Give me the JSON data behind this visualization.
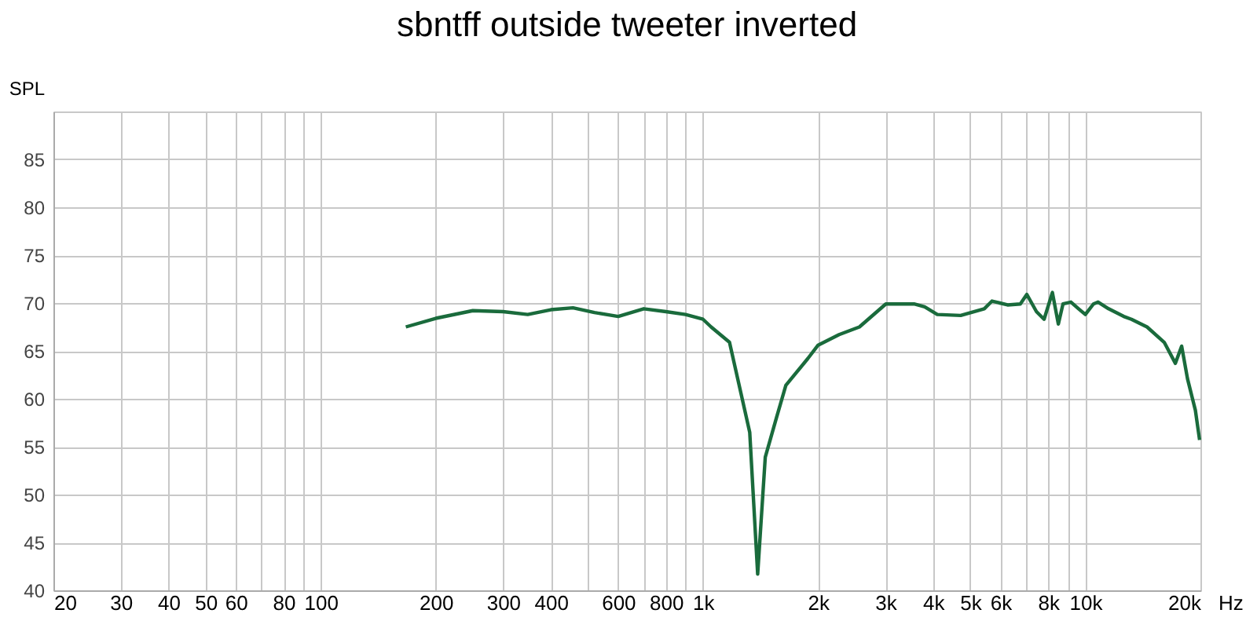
{
  "chart_data": {
    "type": "line",
    "title": "sbntff outside tweeter inverted",
    "ylabel": "SPL",
    "x": [
      167,
      200,
      250,
      300,
      348,
      400,
      457,
      520,
      600,
      700,
      800,
      900,
      1000,
      1050,
      1173,
      1325,
      1390,
      1455,
      1556,
      1647,
      1880,
      2000,
      2270,
      2565,
      3007,
      3565,
      3800,
      4100,
      4720,
      5440,
      5700,
      6260,
      6760,
      7030,
      7450,
      7800,
      8200,
      8500,
      8740,
      9170,
      9600,
      10000,
      10500,
      10800,
      11500,
      12600,
      13200,
      14500,
      16080,
      17200,
      17860,
      18500,
      19400,
      19900
    ],
    "series": [
      {
        "color": "#1a6b3c",
        "values": [
          67.5,
          68.4,
          69.2,
          69.1,
          68.8,
          69.3,
          69.5,
          69.0,
          68.6,
          69.4,
          69.1,
          68.8,
          68.3,
          67.5,
          65.9,
          56.5,
          41.7,
          53.9,
          58.0,
          61.4,
          64.2,
          65.6,
          66.7,
          67.5,
          69.9,
          69.9,
          69.6,
          68.8,
          68.7,
          69.4,
          70.2,
          69.8,
          69.9,
          70.9,
          69.1,
          68.3,
          71.1,
          67.8,
          69.9,
          70.1,
          69.4,
          68.8,
          69.9,
          70.1,
          69.4,
          68.6,
          68.3,
          67.5,
          65.9,
          63.7,
          65.5,
          62.1,
          58.8,
          55.7
        ]
      }
    ],
    "xlim": [
      20,
      20000
    ],
    "ylim": [
      40,
      90
    ],
    "log": "x",
    "grid": true,
    "xticks": [
      20,
      30,
      40,
      50,
      60,
      {
        "value": 70,
        "label": null
      },
      80,
      {
        "value": 90,
        "label": null
      },
      100,
      200,
      300,
      400,
      {
        "value": 500,
        "label": null
      },
      600,
      {
        "value": 700,
        "label": null
      },
      800,
      {
        "value": 900,
        "label": null
      },
      {
        "value": 1000,
        "label": "1k"
      },
      {
        "value": 2000,
        "label": "2k"
      },
      {
        "value": 3000,
        "label": "3k"
      },
      {
        "value": 4000,
        "label": "4k"
      },
      {
        "value": 5000,
        "label": "5k"
      },
      {
        "value": 6000,
        "label": "6k"
      },
      {
        "value": 7000,
        "label": null
      },
      {
        "value": 8000,
        "label": "8k"
      },
      {
        "value": 9000,
        "label": null
      },
      {
        "value": 10000,
        "label": "10k"
      },
      {
        "value": 20000,
        "label": "20k"
      }
    ],
    "xlabel": "Hz",
    "yticks": [
      40,
      45,
      50,
      55,
      60,
      65,
      70,
      75,
      80,
      85,
      {
        "value": 90,
        "label": null
      }
    ],
    "line_style": "solid",
    "marker": "none"
  }
}
